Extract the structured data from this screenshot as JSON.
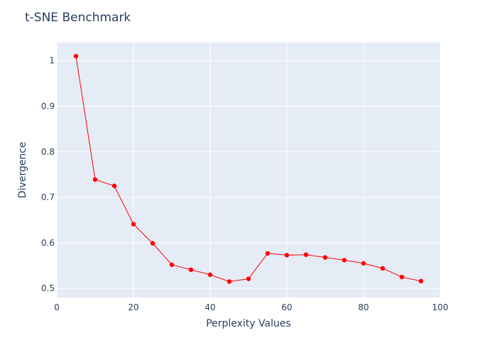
{
  "chart_data": {
    "type": "line",
    "title": "t-SNE Benchmark",
    "xlabel": "Perplexity Values",
    "ylabel": "Divergence",
    "xlim": [
      0,
      100
    ],
    "ylim": [
      0.48,
      1.04
    ],
    "x_ticks": [
      0,
      20,
      40,
      60,
      80,
      100
    ],
    "y_ticks": [
      0.5,
      0.6,
      0.7,
      0.8,
      0.9,
      1
    ],
    "grid": true,
    "legend": "none",
    "series": [
      {
        "color": "#ff0000",
        "mode": "lines+markers",
        "x": [
          5,
          10,
          15,
          20,
          25,
          30,
          35,
          40,
          45,
          50,
          55,
          60,
          65,
          70,
          75,
          80,
          85,
          90,
          95
        ],
        "y": [
          1.01,
          0.739,
          0.725,
          0.641,
          0.599,
          0.552,
          0.541,
          0.53,
          0.515,
          0.521,
          0.577,
          0.573,
          0.574,
          0.568,
          0.562,
          0.555,
          0.544,
          0.525,
          0.516
        ]
      }
    ]
  },
  "colors": {
    "plot_bg": "#e5ecf6",
    "grid": "#ffffff",
    "text": "#2a3f5f",
    "series": "#ff0000"
  }
}
